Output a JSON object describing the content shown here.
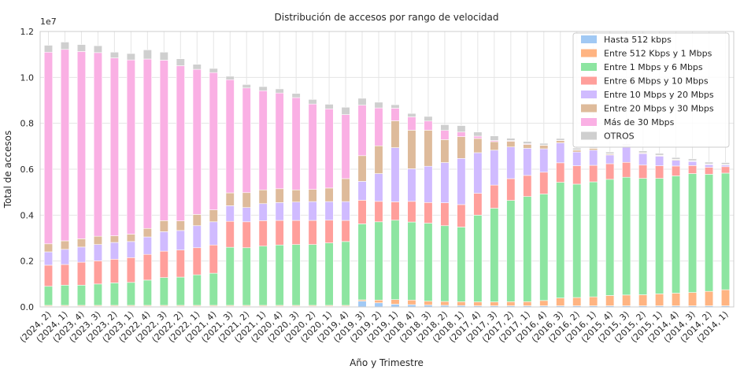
{
  "chart_data": {
    "type": "bar",
    "stacked": true,
    "title": "Distribución de accesos por rango de velocidad",
    "xlabel": "Año y Trimestre",
    "ylabel": "Total de accesos",
    "y_offset_label": "1e7",
    "ylim": [
      0,
      1.2
    ],
    "yticks": [
      0.0,
      0.2,
      0.4,
      0.6,
      0.8,
      1.0,
      1.2
    ],
    "ytick_labels": [
      "0.0",
      "0.2",
      "0.4",
      "0.6",
      "0.8",
      "1.0",
      "1.2"
    ],
    "grid": true,
    "legend_position": "upper right",
    "categories": [
      "(2024, 2)",
      "(2024, 1)",
      "(2023, 4)",
      "(2023, 3)",
      "(2023, 2)",
      "(2023, 1)",
      "(2022, 4)",
      "(2022, 3)",
      "(2022, 2)",
      "(2022, 1)",
      "(2021, 4)",
      "(2021, 3)",
      "(2021, 2)",
      "(2021, 1)",
      "(2020, 4)",
      "(2020, 3)",
      "(2020, 2)",
      "(2020, 1)",
      "(2019, 4)",
      "(2019, 3)",
      "(2019, 2)",
      "(2019, 1)",
      "(2018, 4)",
      "(2018, 3)",
      "(2018, 2)",
      "(2018, 1)",
      "(2017, 4)",
      "(2017, 3)",
      "(2017, 2)",
      "(2017, 1)",
      "(2016, 4)",
      "(2016, 3)",
      "(2016, 2)",
      "(2016, 1)",
      "(2015, 4)",
      "(2015, 3)",
      "(2015, 2)",
      "(2015, 1)",
      "(2014, 4)",
      "(2014, 3)",
      "(2014, 2)",
      "(2014, 1)"
    ],
    "series": [
      {
        "name": "Hasta 512 kbps",
        "color": "#a1c9f4",
        "values": [
          0.003,
          0.003,
          0.003,
          0.003,
          0.003,
          0.003,
          0.003,
          0.003,
          0.003,
          0.003,
          0.003,
          0.003,
          0.003,
          0.003,
          0.003,
          0.003,
          0.003,
          0.003,
          0.003,
          0.025,
          0.018,
          0.012,
          0.01,
          0.008,
          0.007,
          0.006,
          0.005,
          0.005,
          0.005,
          0.005,
          0.005,
          0.005,
          0.005,
          0.005,
          0.005,
          0.005,
          0.005,
          0.005,
          0.005,
          0.005,
          0.005,
          0.005
        ]
      },
      {
        "name": "Entre 512 Kbps y 1 Mbps",
        "color": "#ffb482",
        "values": [
          0.004,
          0.004,
          0.004,
          0.004,
          0.004,
          0.004,
          0.004,
          0.004,
          0.004,
          0.004,
          0.004,
          0.004,
          0.004,
          0.004,
          0.004,
          0.004,
          0.004,
          0.004,
          0.004,
          0.006,
          0.012,
          0.02,
          0.02,
          0.017,
          0.017,
          0.017,
          0.017,
          0.017,
          0.018,
          0.018,
          0.023,
          0.034,
          0.036,
          0.039,
          0.045,
          0.047,
          0.048,
          0.052,
          0.055,
          0.058,
          0.063,
          0.07
        ]
      },
      {
        "name": "Entre 1 Mbps y 6 Mbps",
        "color": "#8de5a1",
        "values": [
          0.083,
          0.088,
          0.088,
          0.093,
          0.098,
          0.1,
          0.11,
          0.121,
          0.123,
          0.133,
          0.14,
          0.253,
          0.251,
          0.258,
          0.263,
          0.265,
          0.265,
          0.272,
          0.278,
          0.331,
          0.341,
          0.346,
          0.34,
          0.34,
          0.33,
          0.325,
          0.378,
          0.408,
          0.441,
          0.458,
          0.464,
          0.504,
          0.494,
          0.501,
          0.506,
          0.513,
          0.507,
          0.503,
          0.511,
          0.518,
          0.51,
          0.508
        ]
      },
      {
        "name": "Entre 6 Mbps y 10 Mbps",
        "color": "#ff9f9b",
        "values": [
          0.092,
          0.09,
          0.1,
          0.101,
          0.103,
          0.108,
          0.112,
          0.115,
          0.118,
          0.118,
          0.123,
          0.113,
          0.113,
          0.111,
          0.107,
          0.105,
          0.105,
          0.099,
          0.092,
          0.103,
          0.089,
          0.08,
          0.09,
          0.09,
          0.1,
          0.098,
          0.095,
          0.101,
          0.095,
          0.092,
          0.095,
          0.085,
          0.08,
          0.072,
          0.068,
          0.065,
          0.058,
          0.055,
          0.043,
          0.035,
          0.03,
          0.028
        ]
      },
      {
        "name": "Entre 10 Mbps y 20 Mbps",
        "color": "#d0bbff",
        "values": [
          0.058,
          0.066,
          0.066,
          0.071,
          0.073,
          0.07,
          0.076,
          0.085,
          0.085,
          0.096,
          0.101,
          0.068,
          0.062,
          0.074,
          0.078,
          0.08,
          0.082,
          0.081,
          0.082,
          0.082,
          0.121,
          0.236,
          0.142,
          0.158,
          0.175,
          0.201,
          0.177,
          0.152,
          0.138,
          0.118,
          0.102,
          0.087,
          0.06,
          0.066,
          0.038,
          0.068,
          0.05,
          0.042,
          0.025,
          0.018,
          0.012,
          0.007
        ]
      },
      {
        "name": "Entre 20 Mbps y 30 Mbps",
        "color": "#debb9b",
        "values": [
          0.035,
          0.037,
          0.036,
          0.036,
          0.029,
          0.032,
          0.037,
          0.048,
          0.042,
          0.049,
          0.052,
          0.056,
          0.065,
          0.06,
          0.06,
          0.053,
          0.053,
          0.059,
          0.1,
          0.112,
          0.121,
          0.117,
          0.168,
          0.157,
          0.1,
          0.095,
          0.062,
          0.037,
          0.025,
          0.017,
          0.015,
          0.01,
          0.008,
          0.008,
          0.004,
          0.004,
          0.003,
          0.003,
          0.003,
          0.002,
          0.002,
          0.002
        ]
      },
      {
        "name": "Más de 30 Mbps",
        "color": "#fab0e4",
        "values": [
          0.835,
          0.834,
          0.816,
          0.8,
          0.775,
          0.759,
          0.738,
          0.699,
          0.676,
          0.632,
          0.598,
          0.493,
          0.456,
          0.432,
          0.417,
          0.402,
          0.372,
          0.345,
          0.279,
          0.22,
          0.165,
          0.055,
          0.058,
          0.04,
          0.04,
          0.02,
          0.01,
          0.005,
          0.003,
          0.003,
          0.001,
          0.001,
          0.001,
          0.001,
          0.001,
          0.001,
          0.001,
          0.001,
          0.001,
          0.001,
          0.001,
          0.001
        ]
      },
      {
        "name": "OTROS",
        "color": "#cfcfcf",
        "values": [
          0.03,
          0.032,
          0.03,
          0.03,
          0.025,
          0.028,
          0.04,
          0.035,
          0.03,
          0.022,
          0.018,
          0.015,
          0.015,
          0.018,
          0.018,
          0.018,
          0.02,
          0.02,
          0.032,
          0.03,
          0.025,
          0.015,
          0.015,
          0.02,
          0.025,
          0.028,
          0.018,
          0.02,
          0.01,
          0.01,
          0.008,
          0.008,
          0.008,
          0.008,
          0.008,
          0.008,
          0.008,
          0.008,
          0.008,
          0.008,
          0.008,
          0.008
        ]
      }
    ]
  }
}
